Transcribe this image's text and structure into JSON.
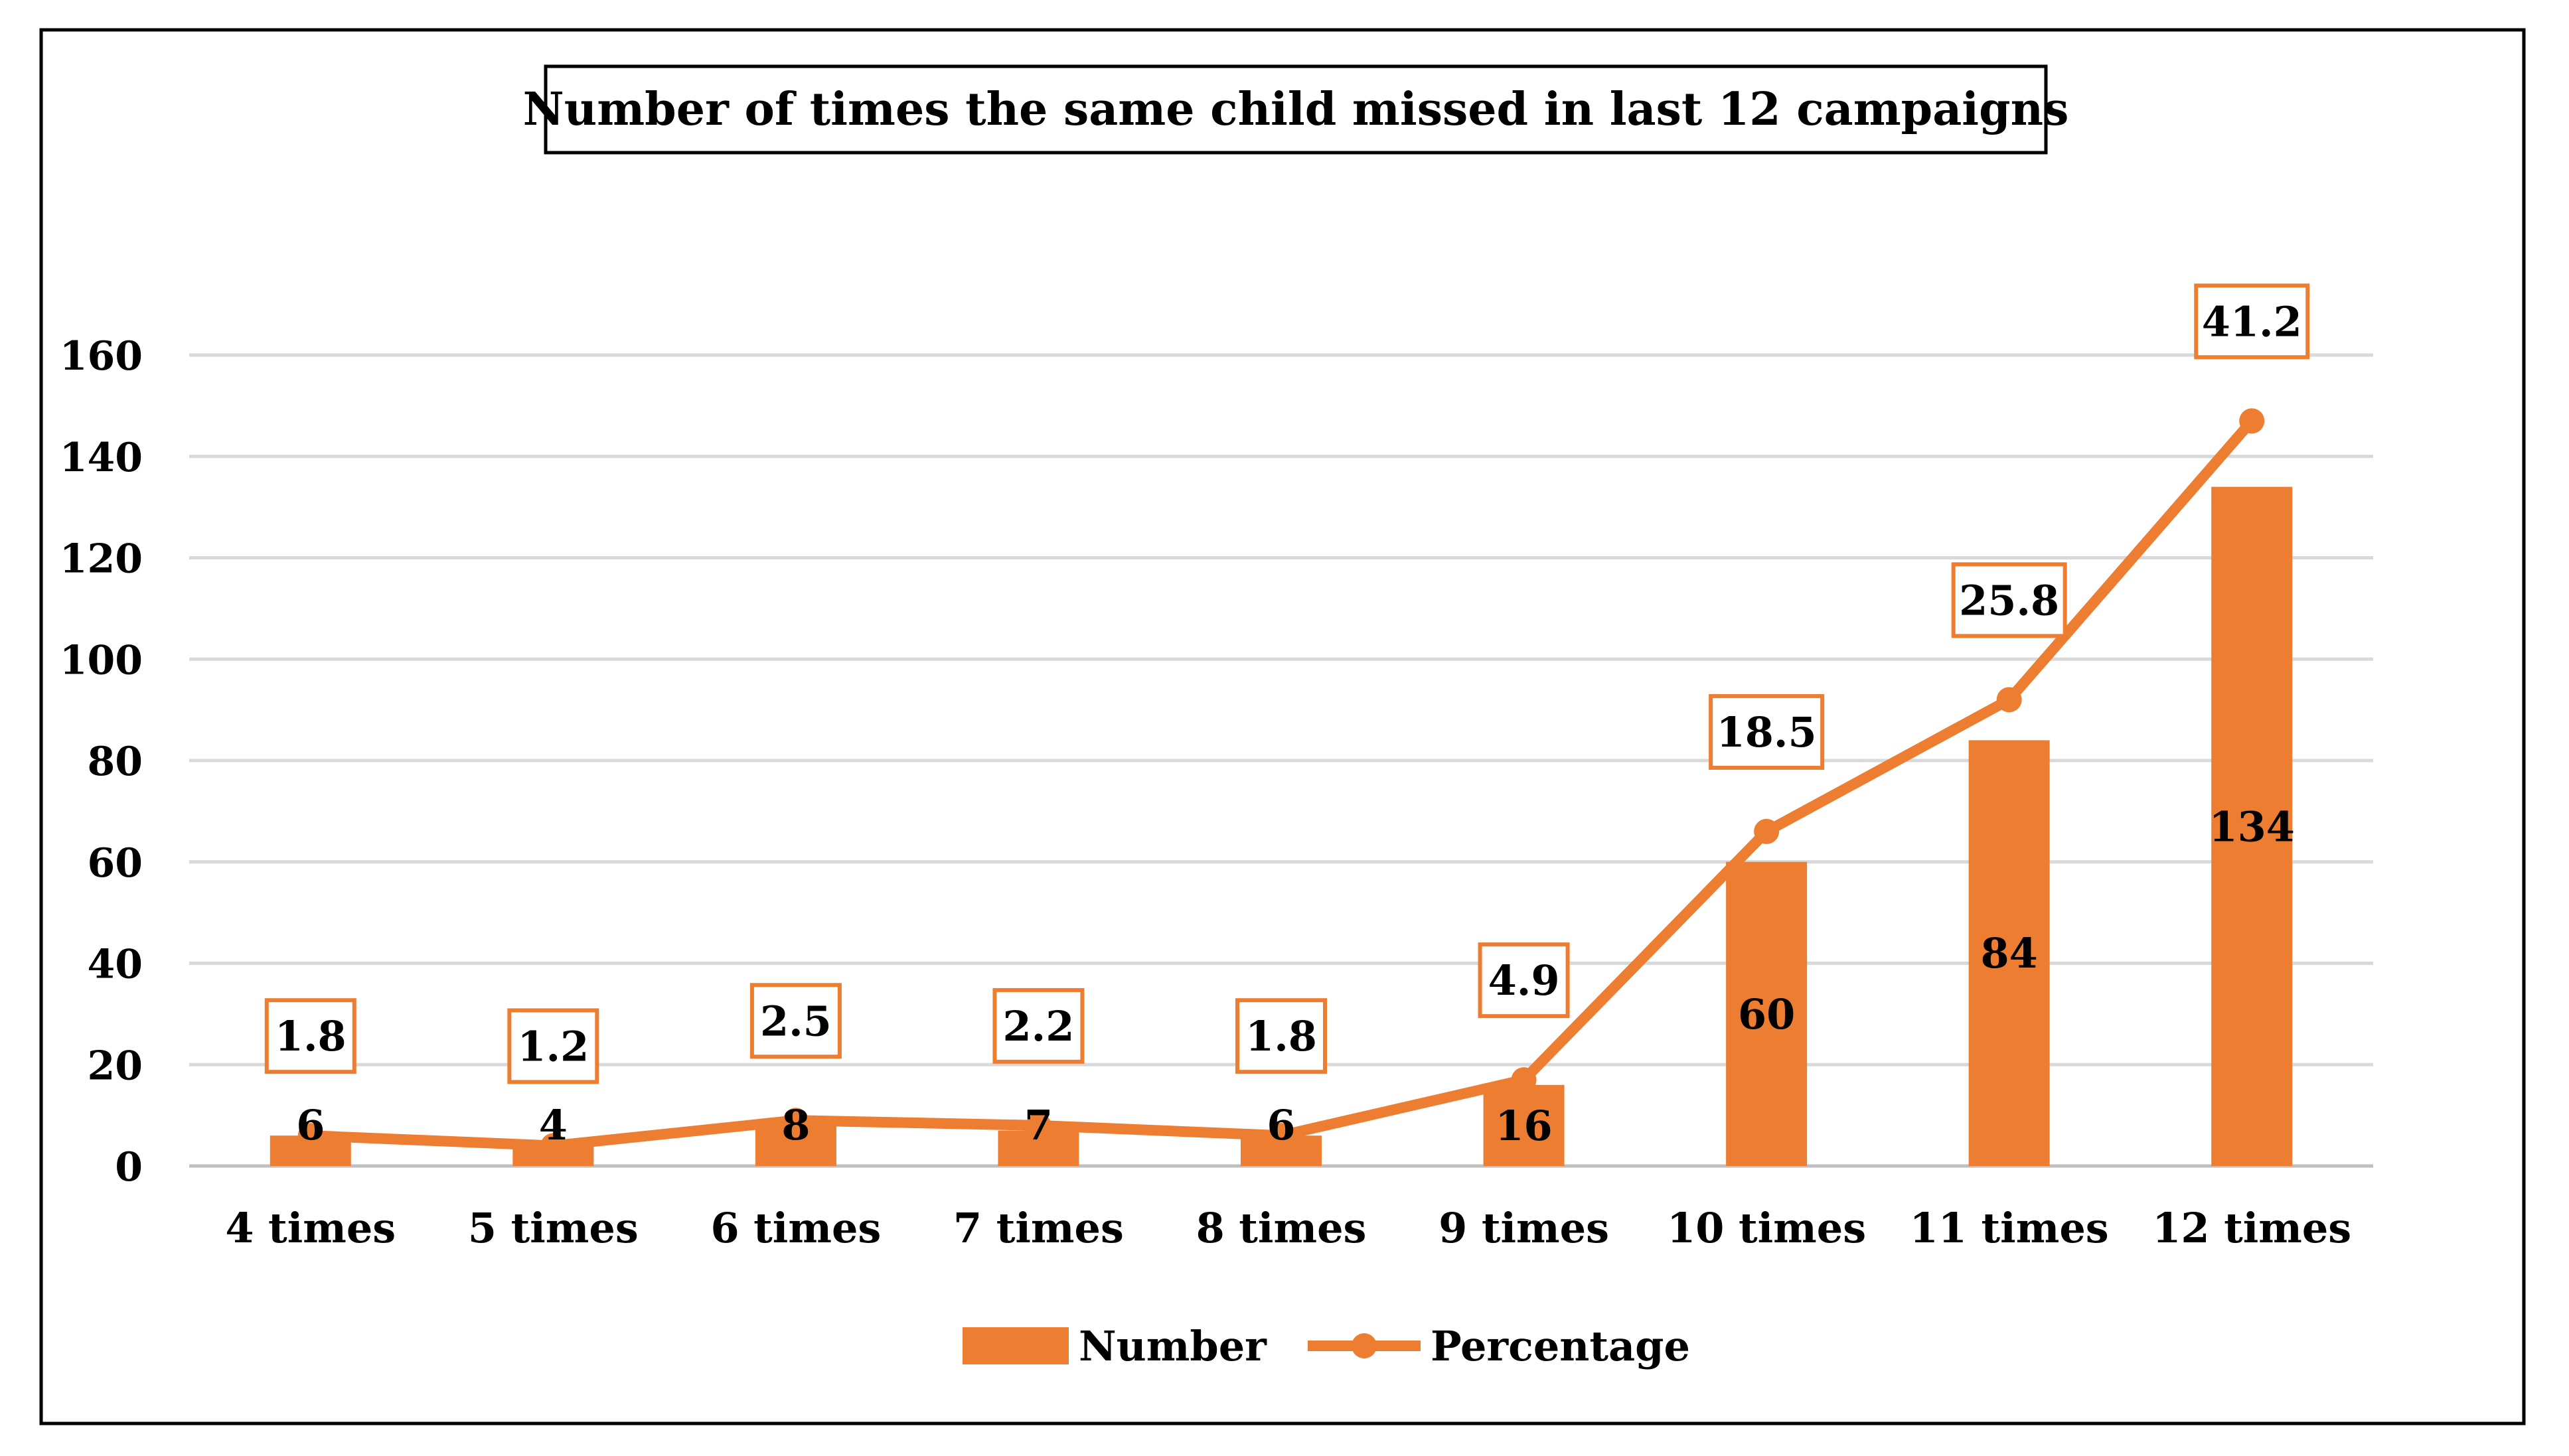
{
  "chart_data": {
    "type": "bar",
    "title": "Number of times the same child missed in last 12 campaigns",
    "categories": [
      "4 times",
      "5 times",
      "6 times",
      "7 times",
      "8 times",
      "9 times",
      "10 times",
      "11 times",
      "12 times"
    ],
    "series": [
      {
        "name": "Number",
        "kind": "bar",
        "values": [
          6,
          4,
          8,
          7,
          6,
          16,
          60,
          84,
          134
        ],
        "labels": [
          "6",
          "4",
          "8",
          "7",
          "6",
          "16",
          "60",
          "84",
          "134"
        ]
      },
      {
        "name": "Percentage",
        "kind": "line",
        "values": [
          1.8,
          1.2,
          2.5,
          2.2,
          1.8,
          4.9,
          18.5,
          25.8,
          41.2
        ],
        "labels": [
          "1.8",
          "1.2",
          "2.5",
          "2.2",
          "1.8",
          "4.9",
          "18.5",
          "25.8",
          "41.2"
        ],
        "plotted_on_axis_values": [
          6,
          4,
          9,
          8,
          6,
          17,
          66,
          92,
          147
        ]
      }
    ],
    "yticks": [
      "0",
      "20",
      "40",
      "60",
      "80",
      "100",
      "120",
      "140",
      "160"
    ],
    "ylim": [
      0,
      160
    ],
    "xlabel": "",
    "ylabel": "",
    "grid": true,
    "legend": "bottom"
  },
  "colors": {
    "accent": "#ED7D31",
    "grid": "#D9D9D9",
    "frame": "#000000",
    "text": "#000000"
  }
}
